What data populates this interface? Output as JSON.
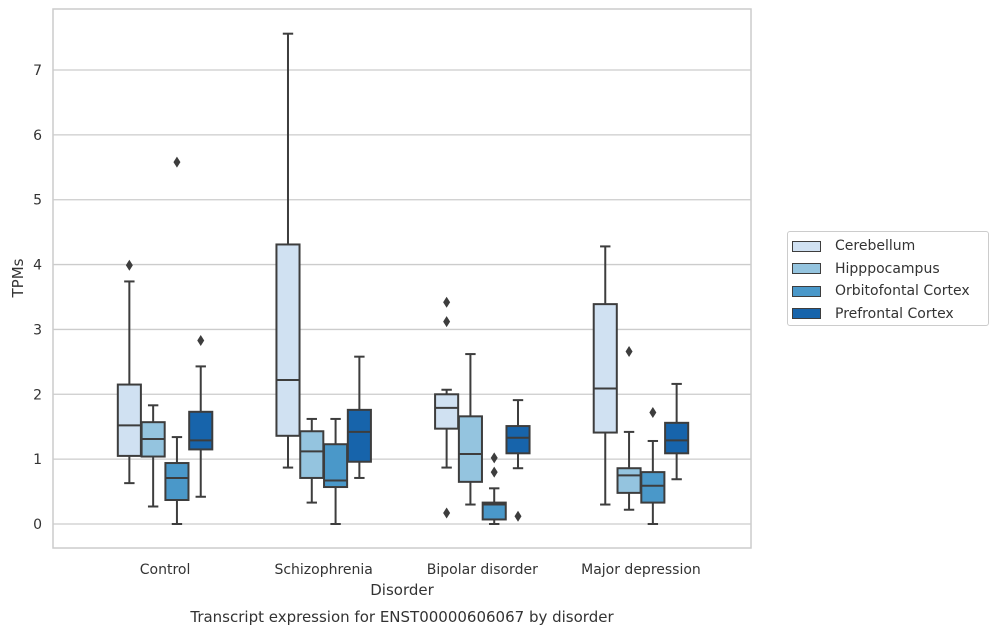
{
  "chart_data": {
    "type": "box",
    "title": "Transcript expression for ENST00000606067 by disorder",
    "xlabel": "Disorder",
    "ylabel": "TPMs",
    "ylim": [
      -0.37,
      7.95
    ],
    "yticks": [
      0,
      1,
      2,
      3,
      4,
      5,
      6,
      7
    ],
    "categories": [
      "Control",
      "Schizophrenia",
      "Bipolar disorder",
      "Major depression"
    ],
    "grid": "horizontal",
    "legend_position": "right",
    "series": [
      {
        "name": "Cerebellum",
        "color": "#d0e1f2",
        "boxes": [
          {
            "min": 0.63,
            "q1": 1.05,
            "median": 1.52,
            "q3": 2.15,
            "max": 3.74,
            "outliers": [
              3.99
            ]
          },
          {
            "min": 0.87,
            "q1": 1.36,
            "median": 2.22,
            "q3": 4.31,
            "max": 7.56,
            "outliers": []
          },
          {
            "min": 0.87,
            "q1": 1.47,
            "median": 1.79,
            "q3": 2.0,
            "max": 2.07,
            "outliers": [
              3.42,
              3.12,
              0.17
            ]
          },
          {
            "min": 0.3,
            "q1": 1.41,
            "median": 2.09,
            "q3": 3.39,
            "max": 4.28,
            "outliers": []
          }
        ]
      },
      {
        "name": "Hipppocampus",
        "color": "#94c4df",
        "boxes": [
          {
            "min": 0.27,
            "q1": 1.04,
            "median": 1.31,
            "q3": 1.57,
            "max": 1.83,
            "outliers": []
          },
          {
            "min": 0.33,
            "q1": 0.71,
            "median": 1.12,
            "q3": 1.43,
            "max": 1.62,
            "outliers": []
          },
          {
            "min": 0.3,
            "q1": 0.65,
            "median": 1.08,
            "q3": 1.66,
            "max": 2.62,
            "outliers": []
          },
          {
            "min": 0.22,
            "q1": 0.48,
            "median": 0.75,
            "q3": 0.86,
            "max": 1.42,
            "outliers": [
              2.66
            ]
          }
        ]
      },
      {
        "name": "Orbitofontal Cortex",
        "color": "#4a98c9",
        "boxes": [
          {
            "min": 0.0,
            "q1": 0.37,
            "median": 0.71,
            "q3": 0.94,
            "max": 1.34,
            "outliers": [
              5.58
            ]
          },
          {
            "min": 0.0,
            "q1": 0.57,
            "median": 0.67,
            "q3": 1.23,
            "max": 1.62,
            "outliers": []
          },
          {
            "min": 0.0,
            "q1": 0.07,
            "median": 0.3,
            "q3": 0.33,
            "max": 0.55,
            "outliers": [
              1.02,
              0.8
            ]
          },
          {
            "min": 0.0,
            "q1": 0.33,
            "median": 0.59,
            "q3": 0.8,
            "max": 1.28,
            "outliers": [
              1.72
            ]
          }
        ]
      },
      {
        "name": "Prefrontal Cortex",
        "color": "#1764ab",
        "boxes": [
          {
            "min": 0.42,
            "q1": 1.15,
            "median": 1.29,
            "q3": 1.73,
            "max": 2.43,
            "outliers": [
              2.83
            ]
          },
          {
            "min": 0.71,
            "q1": 0.96,
            "median": 1.42,
            "q3": 1.76,
            "max": 2.58,
            "outliers": []
          },
          {
            "min": 0.86,
            "q1": 1.09,
            "median": 1.33,
            "q3": 1.51,
            "max": 1.91,
            "outliers": [
              0.12
            ]
          },
          {
            "min": 0.69,
            "q1": 1.09,
            "median": 1.29,
            "q3": 1.56,
            "max": 2.16,
            "outliers": []
          }
        ]
      }
    ]
  }
}
